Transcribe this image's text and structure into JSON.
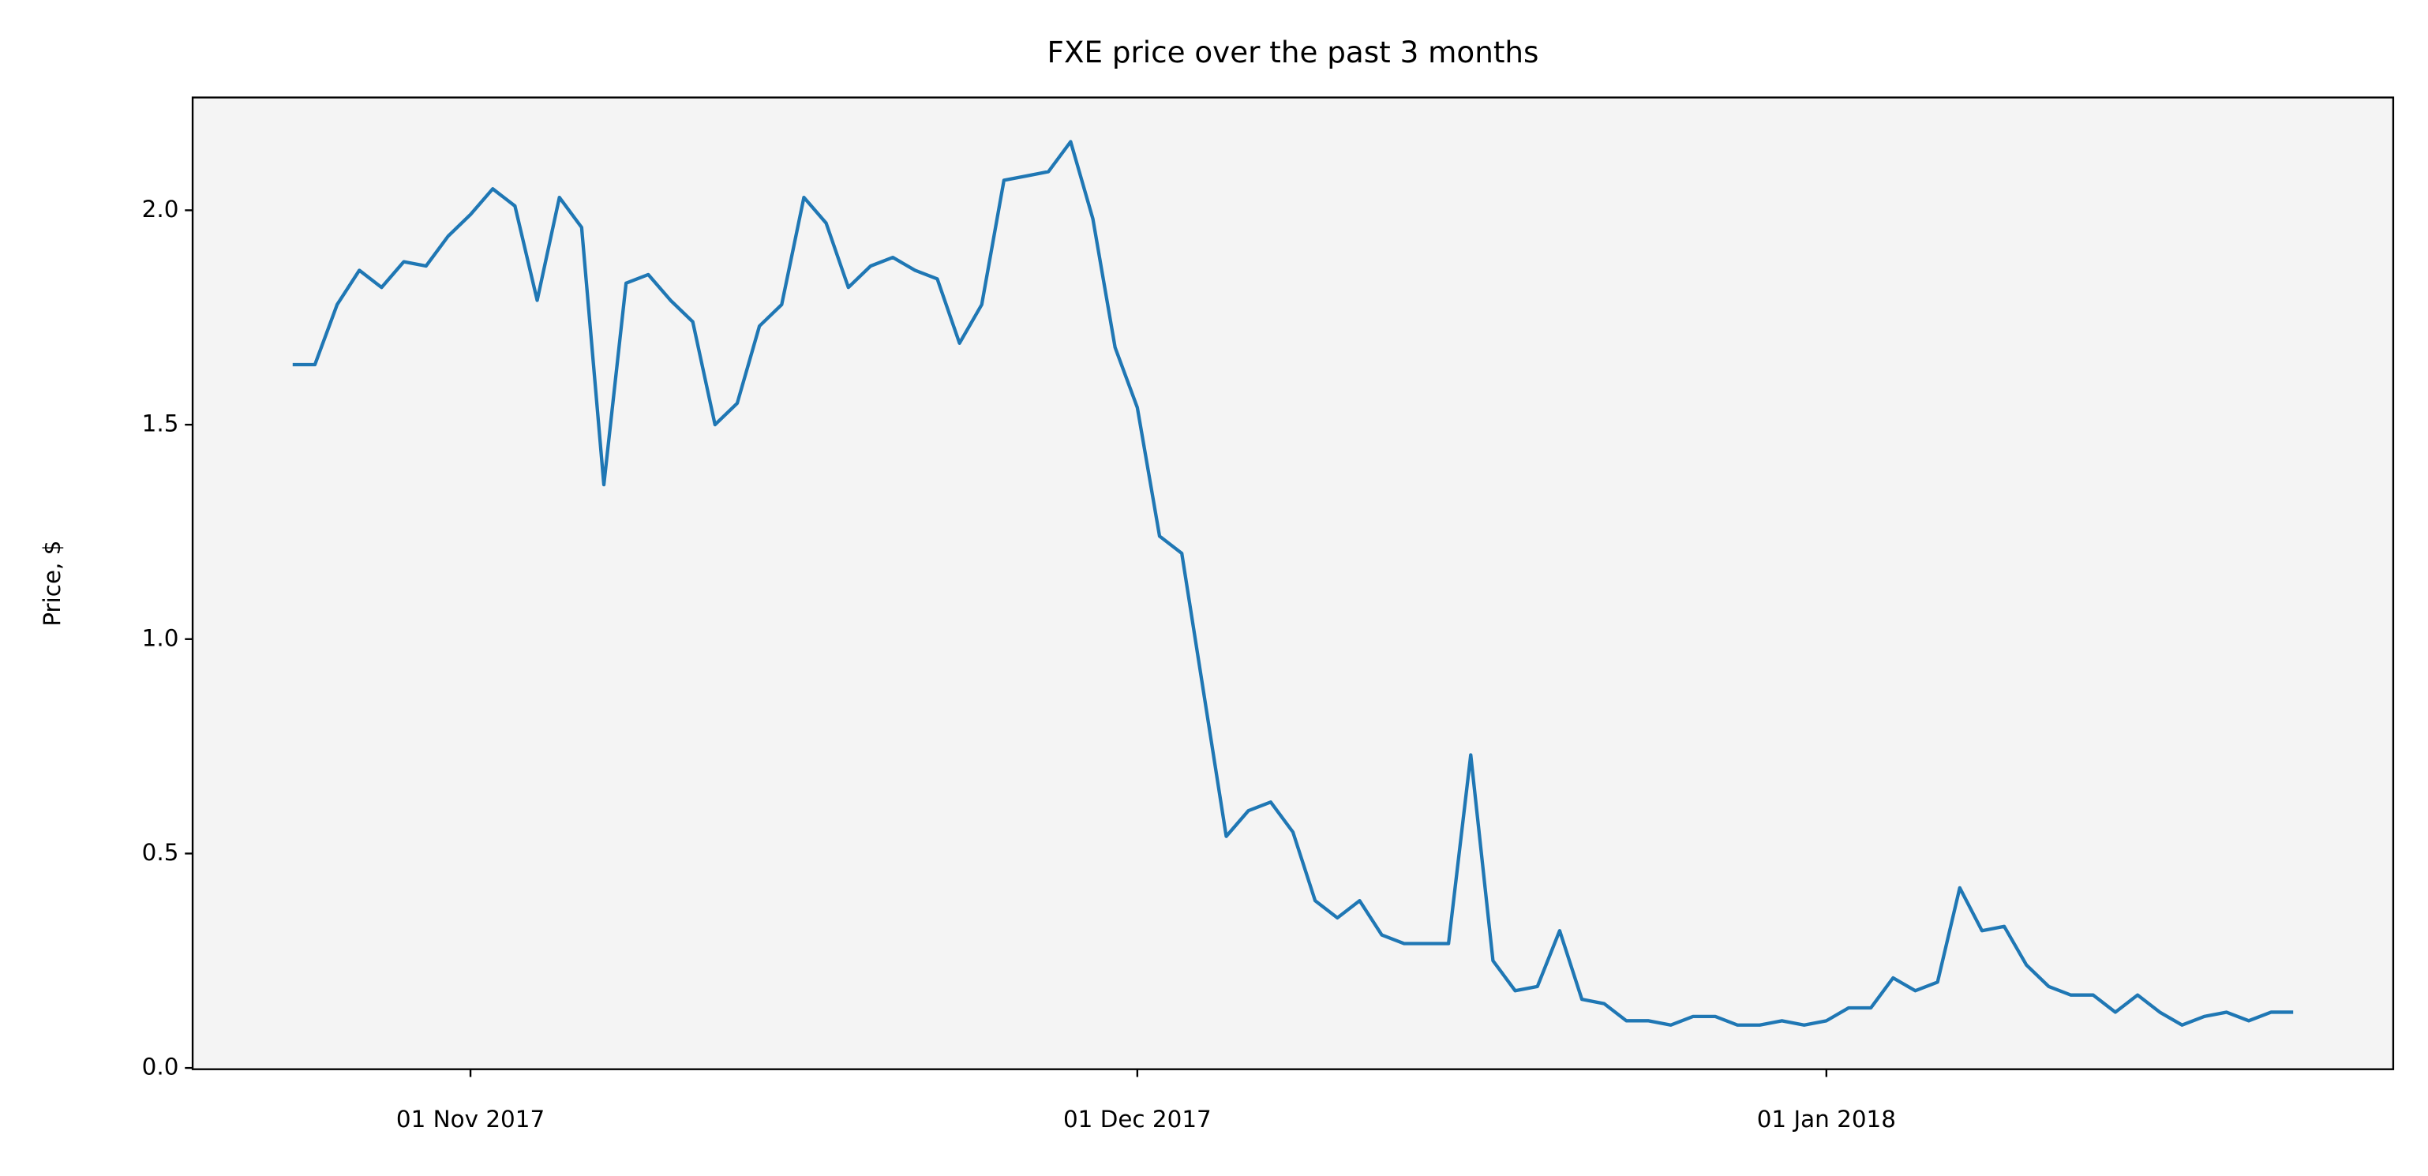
{
  "chart_data": {
    "type": "line",
    "title": "FXE price over the past 3 months",
    "y_label": "Price, $",
    "color": "#1f77b4",
    "x": [
      "2017-10-24",
      "2017-10-25",
      "2017-10-26",
      "2017-10-27",
      "2017-10-28",
      "2017-10-29",
      "2017-10-30",
      "2017-10-31",
      "2017-11-01",
      "2017-11-02",
      "2017-11-03",
      "2017-11-04",
      "2017-11-05",
      "2017-11-06",
      "2017-11-07",
      "2017-11-08",
      "2017-11-09",
      "2017-11-10",
      "2017-11-11",
      "2017-11-12",
      "2017-11-13",
      "2017-11-14",
      "2017-11-15",
      "2017-11-16",
      "2017-11-17",
      "2017-11-18",
      "2017-11-19",
      "2017-11-20",
      "2017-11-21",
      "2017-11-22",
      "2017-11-23",
      "2017-11-24",
      "2017-11-25",
      "2017-11-26",
      "2017-11-27",
      "2017-11-28",
      "2017-11-29",
      "2017-11-30",
      "2017-12-01",
      "2017-12-02",
      "2017-12-03",
      "2017-12-04",
      "2017-12-05",
      "2017-12-06",
      "2017-12-07",
      "2017-12-08",
      "2017-12-09",
      "2017-12-10",
      "2017-12-11",
      "2017-12-12",
      "2017-12-13",
      "2017-12-14",
      "2017-12-15",
      "2017-12-16",
      "2017-12-17",
      "2017-12-18",
      "2017-12-19",
      "2017-12-20",
      "2017-12-21",
      "2017-12-22",
      "2017-12-23",
      "2017-12-24",
      "2017-12-25",
      "2017-12-26",
      "2017-12-27",
      "2017-12-28",
      "2017-12-29",
      "2017-12-30",
      "2017-12-31",
      "2018-01-01",
      "2018-01-02",
      "2018-01-03",
      "2018-01-04",
      "2018-01-05",
      "2018-01-06",
      "2018-01-07",
      "2018-01-08",
      "2018-01-09",
      "2018-01-10",
      "2018-01-11",
      "2018-01-12",
      "2018-01-13",
      "2018-01-14",
      "2018-01-15",
      "2018-01-16",
      "2018-01-17",
      "2018-01-18",
      "2018-01-19",
      "2018-01-20",
      "2018-01-21",
      "2018-01-22"
    ],
    "values": [
      1.64,
      1.64,
      1.78,
      1.86,
      1.82,
      1.88,
      1.87,
      1.94,
      1.99,
      2.05,
      2.01,
      1.79,
      2.03,
      1.96,
      1.36,
      1.83,
      1.85,
      1.79,
      1.74,
      1.5,
      1.55,
      1.73,
      1.78,
      2.03,
      1.97,
      1.82,
      1.87,
      1.89,
      1.86,
      1.84,
      1.69,
      1.78,
      2.07,
      2.08,
      2.09,
      2.16,
      1.98,
      1.68,
      1.54,
      1.24,
      1.2,
      0.87,
      0.54,
      0.6,
      0.62,
      0.55,
      0.39,
      0.35,
      0.39,
      0.31,
      0.29,
      0.29,
      0.29,
      0.73,
      0.25,
      0.18,
      0.19,
      0.32,
      0.16,
      0.15,
      0.11,
      0.11,
      0.1,
      0.12,
      0.12,
      0.1,
      0.1,
      0.11,
      0.1,
      0.11,
      0.14,
      0.14,
      0.21,
      0.18,
      0.2,
      0.42,
      0.32,
      0.33,
      0.24,
      0.19,
      0.17,
      0.17,
      0.13,
      0.17,
      0.13,
      0.1,
      0.12,
      0.13,
      0.11,
      0.13,
      0.13
    ],
    "xlim": [
      "2017-10-19T12:00:00Z",
      "2018-01-26T12:00:00Z"
    ],
    "xticks": [
      {
        "value": "2017-11-01",
        "label": "01 Nov 2017"
      },
      {
        "value": "2017-12-01",
        "label": "01 Dec 2017"
      },
      {
        "value": "2018-01-01",
        "label": "01 Jan 2018"
      }
    ],
    "ylim": [
      -0.003,
      2.263
    ],
    "yticks": [
      {
        "value": 0,
        "label": "0.0"
      },
      0.5,
      {
        "value": 1,
        "label": "1.0"
      },
      1.5,
      {
        "value": 2,
        "label": "2.0"
      }
    ],
    "background": "#f4f4f4"
  }
}
